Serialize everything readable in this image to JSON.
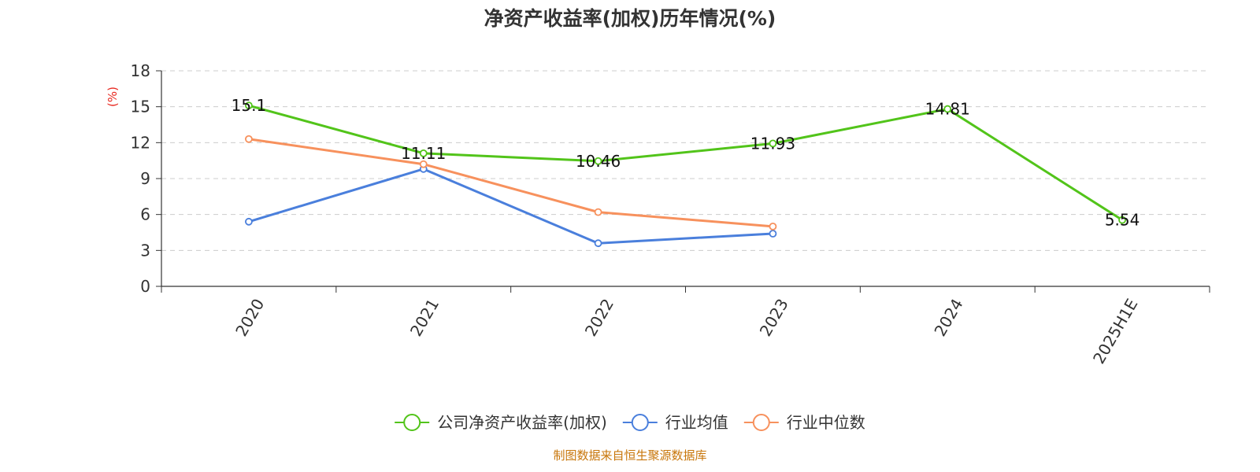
{
  "chart_data": {
    "type": "line",
    "title": "净资产收益率(加权)历年情况(%)",
    "ylabel": "(%)",
    "ylim": [
      0,
      18
    ],
    "yticks": [
      0,
      3,
      6,
      9,
      12,
      15,
      18
    ],
    "categories": [
      "2020",
      "2021",
      "2022",
      "2023",
      "2024",
      "2025H1E"
    ],
    "grid": true,
    "legend_position": "bottom",
    "series": [
      {
        "name": "公司净资产收益率(加权)",
        "color": "#52c41a",
        "values": [
          15.1,
          11.11,
          10.46,
          11.93,
          14.81,
          5.54
        ],
        "show_labels": true
      },
      {
        "name": "行业均值",
        "color": "#4a7fdc",
        "values": [
          5.4,
          9.8,
          3.6,
          4.4,
          null,
          null
        ],
        "show_labels": false
      },
      {
        "name": "行业中位数",
        "color": "#f7915d",
        "values": [
          12.3,
          10.2,
          6.2,
          5.0,
          null,
          null
        ],
        "show_labels": false
      }
    ],
    "source": "制图数据来自恒生聚源数据库",
    "colors": {
      "axis": "#333333",
      "grid": "#cccccc",
      "unit": "#e8281f",
      "source": "#c8760a"
    }
  }
}
